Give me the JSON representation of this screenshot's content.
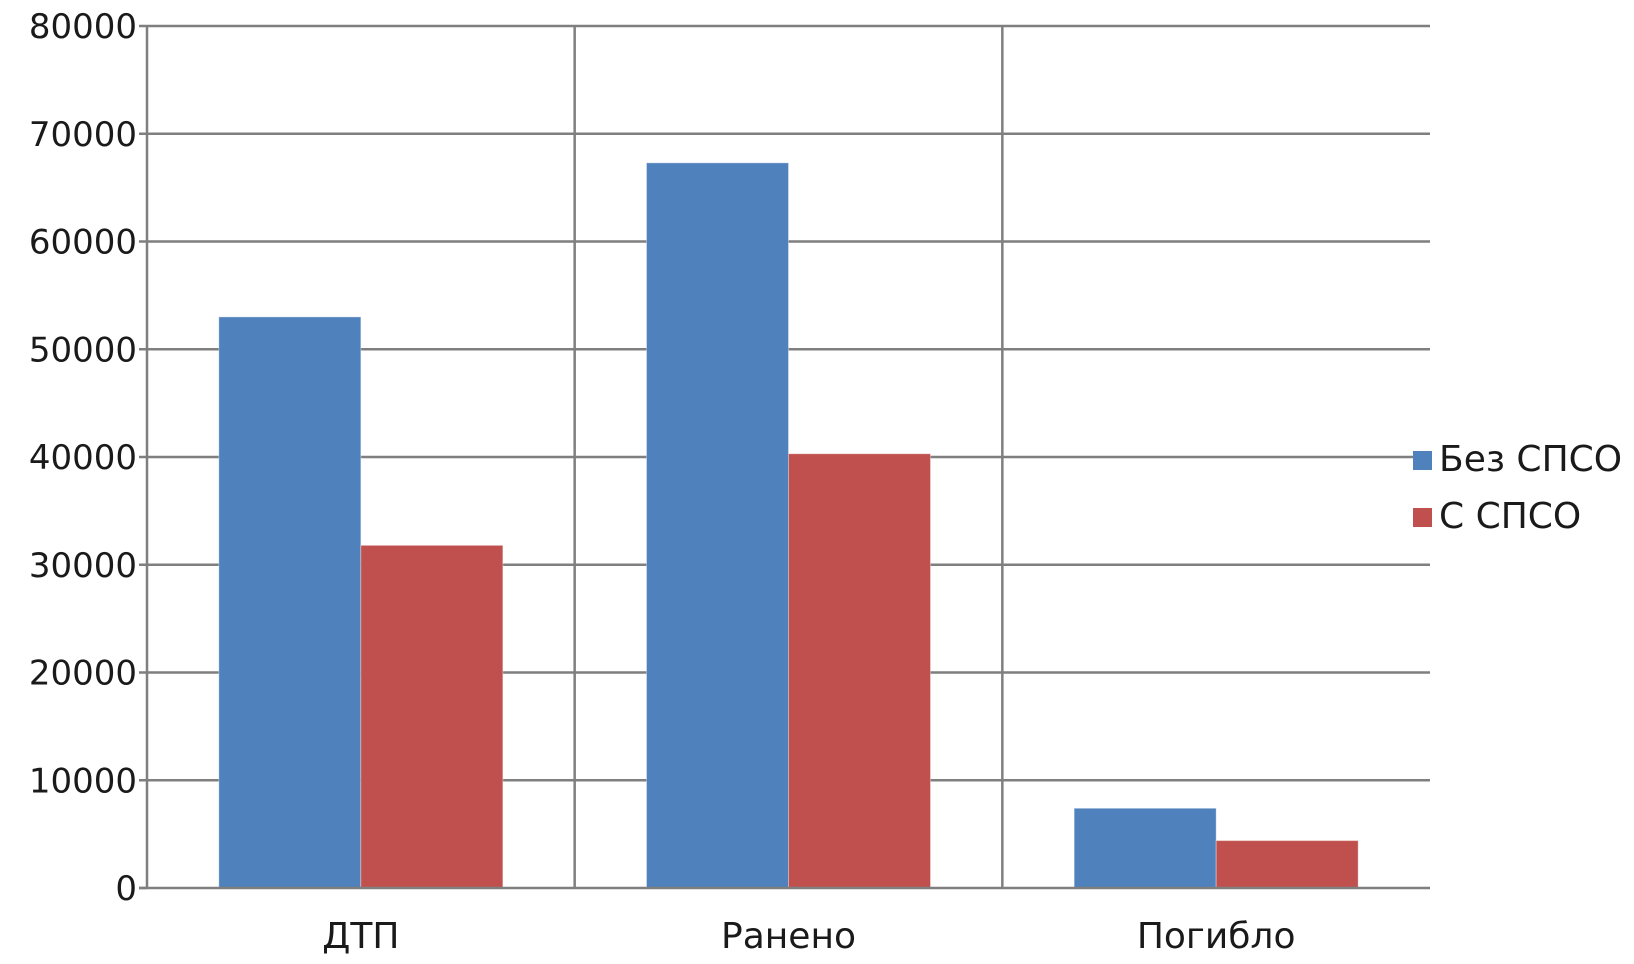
{
  "chart_data": {
    "type": "bar",
    "categories": [
      "ДТП",
      "Ранено",
      "Погибло"
    ],
    "series": [
      {
        "name": "Без СПСО",
        "color": "#4F81BD",
        "values": [
          53000,
          67300,
          7400
        ]
      },
      {
        "name": "С СПСО",
        "color": "#C0504D",
        "values": [
          31800,
          40300,
          4400
        ]
      }
    ],
    "yticks": [
      0,
      10000,
      20000,
      30000,
      40000,
      50000,
      60000,
      70000,
      80000
    ],
    "ylim": [
      0,
      80000
    ],
    "grid": true,
    "legend_position": "right"
  }
}
